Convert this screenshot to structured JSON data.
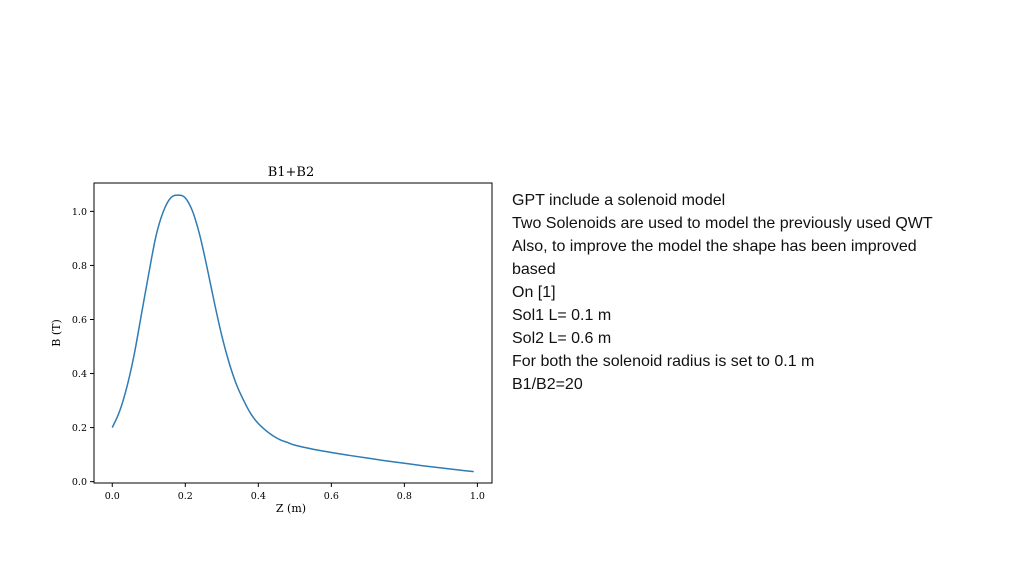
{
  "chart_data": {
    "type": "line",
    "title": "B1+B2",
    "xlabel": "Z (m)",
    "ylabel": "B (T)",
    "xlim": [
      -0.05,
      1.04
    ],
    "ylim": [
      -0.005,
      1.105
    ],
    "xticks": [
      "0.0",
      "0.2",
      "0.4",
      "0.6",
      "0.8",
      "1.0"
    ],
    "yticks": [
      "0.0",
      "0.2",
      "0.4",
      "0.6",
      "0.8",
      "1.0"
    ],
    "grid": false,
    "color": "#2f7bb4",
    "series": [
      {
        "x": [
          0.0,
          0.02,
          0.04,
          0.06,
          0.08,
          0.1,
          0.12,
          0.14,
          0.16,
          0.18,
          0.2,
          0.22,
          0.24,
          0.26,
          0.28,
          0.3,
          0.32,
          0.34,
          0.36,
          0.38,
          0.4,
          0.42,
          0.44,
          0.46,
          0.48,
          0.5,
          0.55,
          0.6,
          0.65,
          0.7,
          0.75,
          0.8,
          0.85,
          0.9,
          0.95,
          0.99
        ],
        "y": [
          0.2,
          0.26,
          0.35,
          0.47,
          0.62,
          0.77,
          0.91,
          1.0,
          1.05,
          1.06,
          1.05,
          1.0,
          0.91,
          0.79,
          0.66,
          0.54,
          0.44,
          0.36,
          0.3,
          0.25,
          0.215,
          0.19,
          0.17,
          0.155,
          0.145,
          0.135,
          0.12,
          0.108,
          0.097,
          0.087,
          0.077,
          0.068,
          0.059,
          0.051,
          0.043,
          0.037
        ]
      }
    ]
  },
  "notes": {
    "lines": [
      "GPT include a solenoid model",
      "Two Solenoids are used to model the previously used QWT",
      "Also, to improve the model the shape has been improved",
      "based",
      "On [1]",
      "Sol1 L= 0.1 m",
      "Sol2 L= 0.6 m",
      "For both the solenoid radius is set to 0.1 m",
      "B1/B2=20"
    ]
  }
}
